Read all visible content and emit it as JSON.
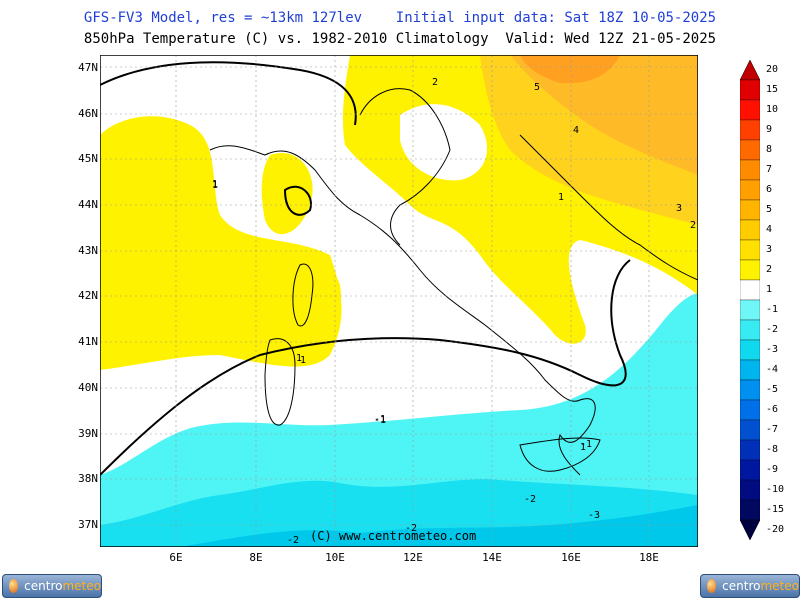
{
  "header": {
    "line1_model": "GFS-FV3 Model, res = ~13km 127lev",
    "line1_init": "Initial input data: Sat 18Z 10-05-2025",
    "line2": "850hPa Temperature (C) vs. 1982-2010 Climatology  Valid: Wed 12Z 21-05-2025"
  },
  "map": {
    "lat_labels": [
      "47N",
      "46N",
      "45N",
      "44N",
      "43N",
      "42N",
      "41N",
      "40N",
      "39N",
      "38N",
      "37N"
    ],
    "lon_labels": [
      "6E",
      "8E",
      "10E",
      "12E",
      "14E",
      "16E",
      "18E"
    ],
    "copyright": "(C) www.centrometeo.com",
    "contour_labels": [
      "1",
      "2",
      "5",
      "4",
      "3",
      "1",
      "2",
      "1",
      "1",
      "1",
      "1",
      "-1",
      "-1",
      "-1",
      "-2",
      "-2",
      "-2",
      "-3"
    ],
    "palette": {
      "positive_1": "#fff200",
      "positive_2": "#ffd21e",
      "positive_3": "#ffba28",
      "positive_4": "#ffa020",
      "negative_1": "#4ff5f5",
      "negative_2": "#18e0f0",
      "negative_3": "#00c8ea",
      "neutral": "#ffffff"
    }
  },
  "colorbar": {
    "labels": [
      "20",
      "15",
      "10",
      "9",
      "8",
      "7",
      "6",
      "5",
      "4",
      "3",
      "2",
      "1",
      "-1",
      "-2",
      "-3",
      "-4",
      "-5",
      "-6",
      "-7",
      "-8",
      "-9",
      "-10",
      "-15",
      "-20"
    ],
    "colors": [
      "#c00000",
      "#e00000",
      "#ff1000",
      "#ff4000",
      "#ff6a00",
      "#ff8c00",
      "#ffa000",
      "#ffb400",
      "#ffcc00",
      "#ffe000",
      "#fff200",
      "#ffffff",
      "#6ff7f7",
      "#38eaf2",
      "#10d8ee",
      "#00b4ee",
      "#0090f0",
      "#0070e8",
      "#0050d0",
      "#0030b8",
      "#0018a0",
      "#000c80",
      "#000860",
      "#000040"
    ]
  },
  "logos": {
    "left_text_a": "centro",
    "left_text_b": "meteo",
    "right_text_a": "centro",
    "right_text_b": "meteo"
  }
}
